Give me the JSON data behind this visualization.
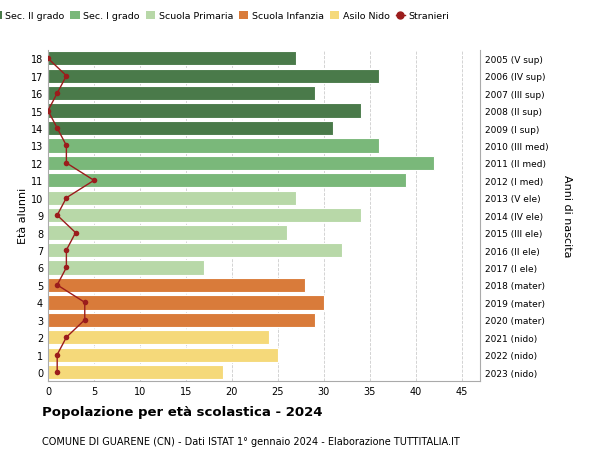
{
  "ages": [
    18,
    17,
    16,
    15,
    14,
    13,
    12,
    11,
    10,
    9,
    8,
    7,
    6,
    5,
    4,
    3,
    2,
    1,
    0
  ],
  "right_labels": [
    "2005 (V sup)",
    "2006 (IV sup)",
    "2007 (III sup)",
    "2008 (II sup)",
    "2009 (I sup)",
    "2010 (III med)",
    "2011 (II med)",
    "2012 (I med)",
    "2013 (V ele)",
    "2014 (IV ele)",
    "2015 (III ele)",
    "2016 (II ele)",
    "2017 (I ele)",
    "2018 (mater)",
    "2019 (mater)",
    "2020 (mater)",
    "2021 (nido)",
    "2022 (nido)",
    "2023 (nido)"
  ],
  "bar_values": [
    27,
    36,
    29,
    34,
    31,
    36,
    42,
    39,
    27,
    34,
    26,
    32,
    17,
    28,
    30,
    29,
    24,
    25,
    19
  ],
  "bar_colors": [
    "#4a7a4a",
    "#4a7a4a",
    "#4a7a4a",
    "#4a7a4a",
    "#4a7a4a",
    "#7ab87a",
    "#7ab87a",
    "#7ab87a",
    "#b8d8a8",
    "#b8d8a8",
    "#b8d8a8",
    "#b8d8a8",
    "#b8d8a8",
    "#d97b3a",
    "#d97b3a",
    "#d97b3a",
    "#f5d97a",
    "#f5d97a",
    "#f5d97a"
  ],
  "stranieri_values": [
    0,
    2,
    1,
    0,
    1,
    2,
    2,
    5,
    2,
    1,
    3,
    2,
    2,
    1,
    4,
    4,
    2,
    1,
    1
  ],
  "stranieri_color": "#9b1c1c",
  "ylabel_left": "Età alunni",
  "ylabel_right": "Anni di nascita",
  "xlim": [
    0,
    47
  ],
  "xticks": [
    0,
    5,
    10,
    15,
    20,
    25,
    30,
    35,
    40,
    45
  ],
  "title_bold": "Popolazione per età scolastica - 2024",
  "subtitle": "COMUNE DI GUARENE (CN) - Dati ISTAT 1° gennaio 2024 - Elaborazione TUTTITALIA.IT",
  "bg_color": "#ffffff",
  "grid_color": "#cccccc",
  "legend_items": [
    {
      "label": "Sec. II grado",
      "color": "#4a7a4a"
    },
    {
      "label": "Sec. I grado",
      "color": "#7ab87a"
    },
    {
      "label": "Scuola Primaria",
      "color": "#b8d8a8"
    },
    {
      "label": "Scuola Infanzia",
      "color": "#d97b3a"
    },
    {
      "label": "Asilo Nido",
      "color": "#f5d97a"
    },
    {
      "label": "Stranieri",
      "color": "#9b1c1c"
    }
  ]
}
